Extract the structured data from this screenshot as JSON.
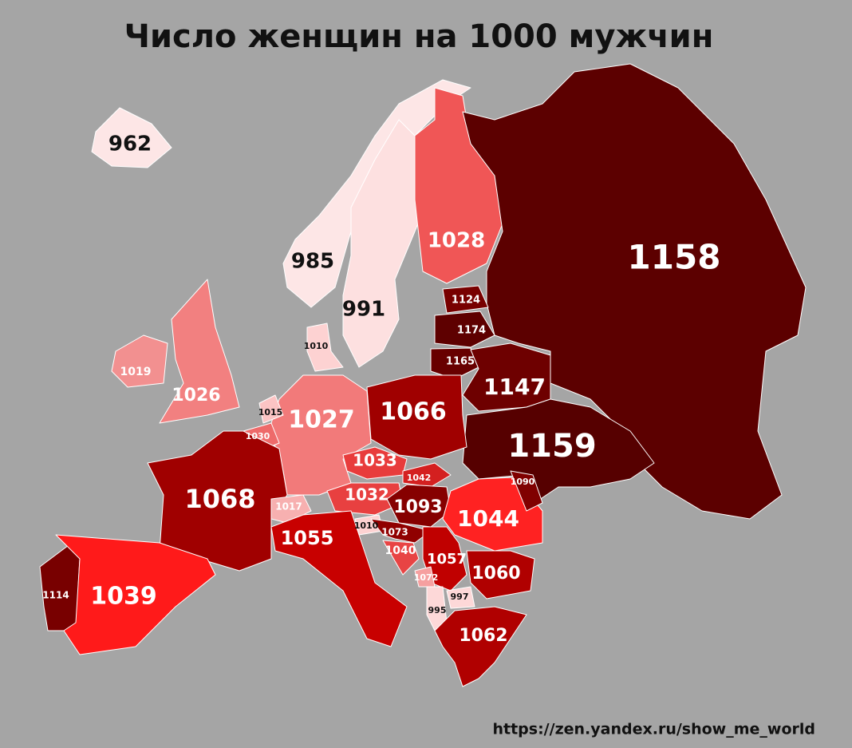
{
  "title": "Число женщин на 1000 мужчин",
  "source": "https://zen.yandex.ru/show_me_world",
  "regions": [
    {
      "value": 962,
      "color": "#fde6e6"
    },
    {
      "value": 985,
      "color": "#fde6e6"
    },
    {
      "value": 991,
      "color": "#fde0e0"
    },
    {
      "value": 1028,
      "color": "#f05656"
    },
    {
      "value": 1158,
      "color": "#5c0000"
    },
    {
      "value": 1124,
      "color": "#780000"
    },
    {
      "value": 1174,
      "color": "#5e0000"
    },
    {
      "value": 1165,
      "color": "#680000"
    },
    {
      "value": 1147,
      "color": "#6e0000"
    },
    {
      "value": 1159,
      "color": "#560000"
    },
    {
      "value": 1066,
      "color": "#a00000"
    },
    {
      "value": 1027,
      "color": "#f27a7a"
    },
    {
      "value": 1010,
      "color": "#fdd2d2"
    },
    {
      "value": 1019,
      "color": "#f29090"
    },
    {
      "value": 1026,
      "color": "#f28080"
    },
    {
      "value": 1015,
      "color": "#fbc4c4"
    },
    {
      "value": 1030,
      "color": "#ee6a6a"
    },
    {
      "value": 1068,
      "color": "#a00000"
    },
    {
      "value": 1017,
      "color": "#f7b0b0"
    },
    {
      "value": 1033,
      "color": "#e83c3c"
    },
    {
      "value": 1042,
      "color": "#d42020"
    },
    {
      "value": 1032,
      "color": "#e84040"
    },
    {
      "value": 1093,
      "color": "#860000"
    },
    {
      "value": 1044,
      "color": "#ff2222"
    },
    {
      "value": 1010,
      "color": "#fdd2d2"
    },
    {
      "value": 1055,
      "color": "#c80000"
    },
    {
      "value": 1073,
      "color": "#900000"
    },
    {
      "value": 1040,
      "color": "#e84444"
    },
    {
      "value": 1057,
      "color": "#c00000"
    },
    {
      "value": 1060,
      "color": "#b00000"
    },
    {
      "value": 1072,
      "color": "#f6a0a0"
    },
    {
      "value": 997,
      "color": "#fdd8d8"
    },
    {
      "value": 995,
      "color": "#fdd8d8"
    },
    {
      "value": 1062,
      "color": "#b00000"
    },
    {
      "value": 1114,
      "color": "#780000"
    },
    {
      "value": 1039,
      "color": "#ff1a1a"
    },
    {
      "value": 1090,
      "color": "#800000"
    }
  ]
}
